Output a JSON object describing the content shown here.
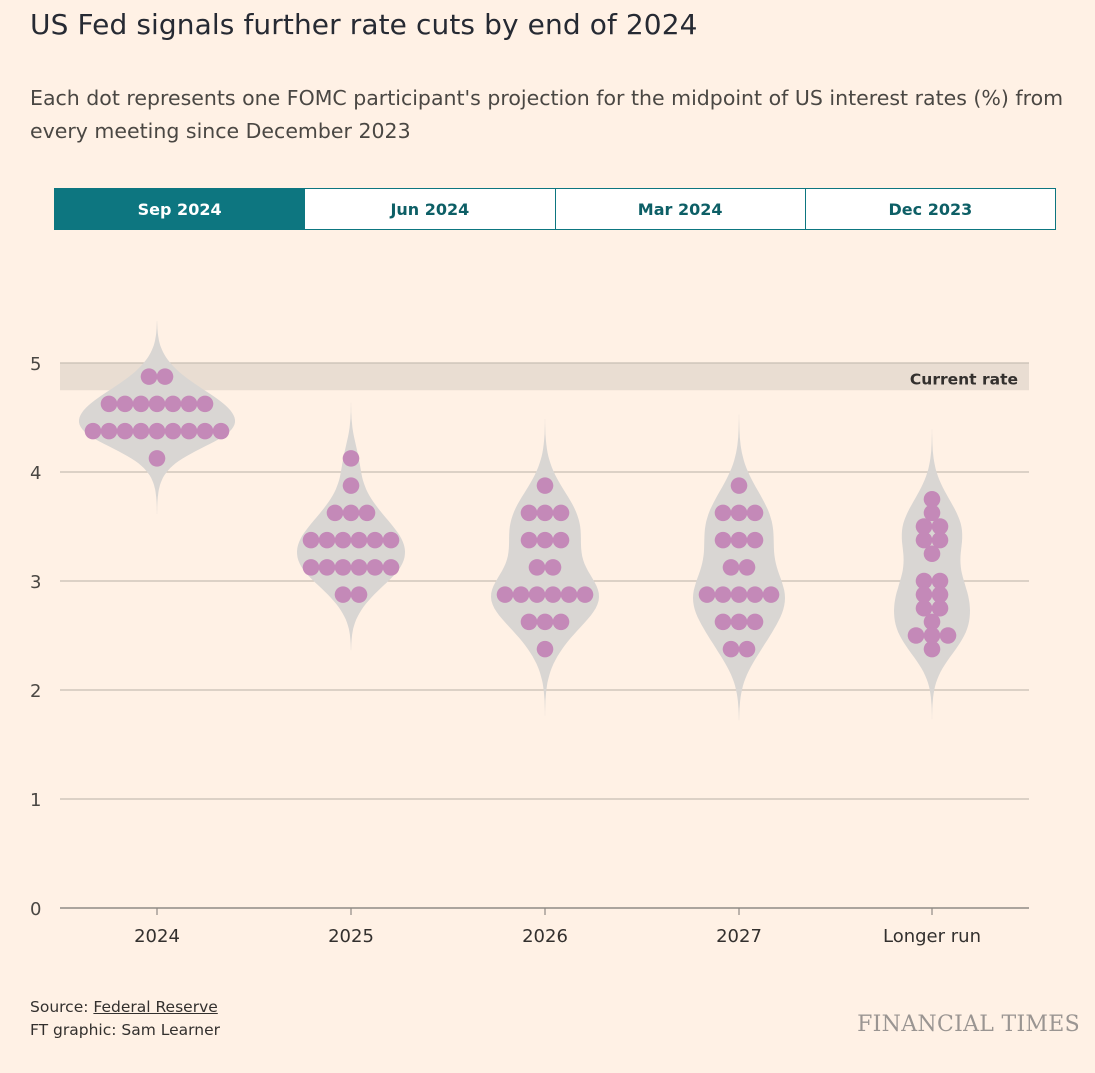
{
  "header": {
    "title": "US Fed signals further rate cuts by end of 2024",
    "subtitle": "Each dot represents one FOMC participant's projection for the midpoint of US interest rates (%) from every meeting since December 2023"
  },
  "tabs": [
    {
      "label": "Sep 2024",
      "active": true
    },
    {
      "label": "Jun 2024",
      "active": false
    },
    {
      "label": "Mar 2024",
      "active": false
    },
    {
      "label": "Dec 2023",
      "active": false
    }
  ],
  "colors": {
    "background": "#fff1e5",
    "accent": "#0d7680",
    "dot": "#c489b8",
    "violin": "#d9d6d3",
    "current_rate_band": "#e9ddd2",
    "gridline": "#c8beb4"
  },
  "chart_data": {
    "type": "scatter",
    "subtype": "dot-plot-with-violins",
    "categories": [
      "2024",
      "2025",
      "2026",
      "2027",
      "Longer run"
    ],
    "ylim": [
      0,
      5
    ],
    "yticks": [
      "0",
      "1",
      "2",
      "3",
      "4",
      "5"
    ],
    "grid": true,
    "current_rate": {
      "label": "Current rate",
      "low": 4.75,
      "high": 5.0
    },
    "series": [
      {
        "category": "2024",
        "values": [
          4.875,
          4.875,
          4.625,
          4.625,
          4.625,
          4.625,
          4.625,
          4.625,
          4.625,
          4.375,
          4.375,
          4.375,
          4.375,
          4.375,
          4.375,
          4.375,
          4.375,
          4.375,
          4.125
        ]
      },
      {
        "category": "2025",
        "values": [
          4.125,
          3.875,
          3.625,
          3.625,
          3.625,
          3.375,
          3.375,
          3.375,
          3.375,
          3.375,
          3.375,
          3.125,
          3.125,
          3.125,
          3.125,
          3.125,
          3.125,
          2.875,
          2.875
        ]
      },
      {
        "category": "2026",
        "values": [
          3.875,
          3.625,
          3.625,
          3.625,
          3.375,
          3.375,
          3.375,
          3.125,
          3.125,
          2.875,
          2.875,
          2.875,
          2.875,
          2.875,
          2.875,
          2.625,
          2.625,
          2.625,
          2.375
        ]
      },
      {
        "category": "2027",
        "values": [
          3.875,
          3.625,
          3.625,
          3.625,
          3.375,
          3.375,
          3.375,
          3.125,
          3.125,
          2.875,
          2.875,
          2.875,
          2.875,
          2.875,
          2.625,
          2.625,
          2.625,
          2.375,
          2.375
        ]
      },
      {
        "category": "Longer run",
        "values": [
          3.75,
          3.625,
          3.5,
          3.5,
          3.375,
          3.375,
          3.25,
          3.0,
          3.0,
          2.875,
          2.875,
          2.75,
          2.75,
          2.625,
          2.5,
          2.5,
          2.5,
          2.375
        ]
      }
    ]
  },
  "footer": {
    "source_prefix": "Source: ",
    "source_link": "Federal Reserve",
    "credit": "FT graphic: Sam Learner",
    "brand": "FINANCIAL TIMES"
  }
}
